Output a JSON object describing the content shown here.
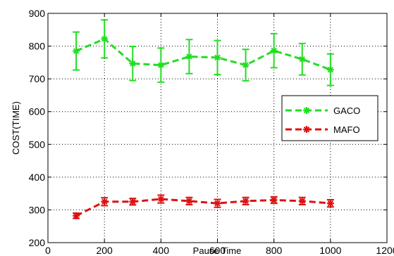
{
  "chart_data": {
    "type": "line",
    "xlabel": "Pause Time",
    "ylabel": "COST(TIME)",
    "xlim": [
      0,
      1200
    ],
    "ylim": [
      200,
      900
    ],
    "xticks": [
      0,
      200,
      400,
      600,
      800,
      1000,
      1200
    ],
    "yticks": [
      200,
      300,
      400,
      500,
      600,
      700,
      800,
      900
    ],
    "xtick_labels": [
      "0",
      "200",
      "400",
      "600",
      "800",
      "1000",
      "1200"
    ],
    "ytick_labels": [
      "200",
      "300",
      "400",
      "500",
      "600",
      "700",
      "800",
      "900"
    ],
    "grid": true,
    "legend_position": "right",
    "x": [
      100,
      200,
      300,
      400,
      500,
      600,
      700,
      800,
      900,
      1000
    ],
    "series": [
      {
        "name": "GACO",
        "color": "#22dd22",
        "marker": "star",
        "values": [
          785,
          822,
          747,
          742,
          768,
          765,
          742,
          786,
          760,
          728
        ],
        "error": [
          58,
          58,
          52,
          52,
          52,
          52,
          48,
          52,
          48,
          48
        ]
      },
      {
        "name": "MAFO",
        "color": "#dd1111",
        "marker": "star",
        "values": [
          282,
          325,
          325,
          333,
          327,
          320,
          327,
          330,
          327,
          320
        ],
        "error": [
          8,
          12,
          10,
          12,
          11,
          12,
          11,
          10,
          11,
          11
        ]
      }
    ]
  }
}
